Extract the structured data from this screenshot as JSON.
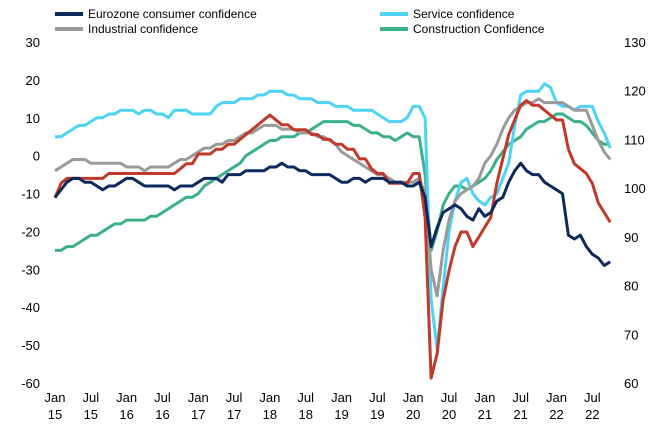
{
  "chart_data": {
    "type": "line",
    "categories": [
      "Jan 15",
      null,
      null,
      null,
      null,
      null,
      "Jul 15",
      null,
      null,
      null,
      null,
      null,
      "Jan 16",
      null,
      null,
      null,
      null,
      null,
      "Jul 16",
      null,
      null,
      null,
      null,
      null,
      "Jan 17",
      null,
      null,
      null,
      null,
      null,
      "Jul 17",
      null,
      null,
      null,
      null,
      null,
      "Jan 18",
      null,
      null,
      null,
      null,
      null,
      "Jul 18",
      null,
      null,
      null,
      null,
      null,
      "Jan 19",
      null,
      null,
      null,
      null,
      null,
      "Jul 19",
      null,
      null,
      null,
      null,
      null,
      "Jan 20",
      null,
      null,
      null,
      null,
      null,
      "Jul 20",
      null,
      null,
      null,
      null,
      null,
      "Jan 21",
      null,
      null,
      null,
      null,
      null,
      "Jul 21",
      null,
      null,
      null,
      null,
      null,
      "Jan 22",
      null,
      null,
      null,
      null,
      null,
      "Jul 22",
      null,
      null,
      null
    ],
    "series": [
      {
        "name": "Eurozone consumer confidence",
        "color": "#0d2a5c",
        "values": [
          -11,
          -9,
          -7,
          -6,
          -6,
          -7,
          -7,
          -8,
          -9,
          -8,
          -8,
          -7,
          -6,
          -6,
          -7,
          -8,
          -8,
          -8,
          -8,
          -8,
          -9,
          -8,
          -8,
          -8,
          -7,
          -6,
          -6,
          -6,
          -7,
          -5,
          -5,
          -5,
          -4,
          -4,
          -4,
          -4,
          -3,
          -3,
          -2,
          -3,
          -3,
          -4,
          -4,
          -5,
          -5,
          -5,
          -5,
          -6,
          -7,
          -7,
          -6,
          -6,
          -7,
          -6,
          -6,
          -6,
          -7,
          -7,
          -7,
          -8,
          -8,
          -7,
          -11,
          -24,
          -19,
          -15,
          -14,
          -13,
          -14,
          -16,
          -17,
          -14,
          -16,
          -15,
          -12,
          -11,
          -7,
          -4,
          -2,
          -4,
          -5,
          -5,
          -7,
          -8,
          -9,
          -10,
          -21,
          -22,
          -21,
          -24,
          -26,
          -27,
          -29,
          -28
        ]
      },
      {
        "name": "Service confidence",
        "color": "#4dd3f5",
        "values": [
          5,
          5,
          6,
          7,
          8,
          8,
          9,
          10,
          10,
          11,
          11,
          12,
          12,
          12,
          11,
          12,
          12,
          11,
          11,
          10,
          12,
          12,
          12,
          11,
          11,
          11,
          11,
          13,
          14,
          14,
          14,
          15,
          15,
          15,
          16,
          16,
          17,
          17,
          17,
          16,
          16,
          15,
          15,
          15,
          14,
          14,
          14,
          13,
          13,
          13,
          12,
          12,
          12,
          12,
          11,
          10,
          9,
          9,
          9,
          10,
          13,
          13,
          10,
          -38,
          -51,
          -35,
          -20,
          -12,
          -7,
          -6,
          -10,
          -12,
          -13,
          -11,
          -10,
          -6,
          -2,
          8,
          16,
          17,
          17,
          17,
          19,
          18,
          14,
          13,
          13,
          12,
          13,
          13,
          13,
          9,
          6,
          2
        ]
      },
      {
        "name": "Industrial confidence",
        "color": "#9a9a9a",
        "values": [
          -4,
          -3,
          -2,
          -1,
          -1,
          -1,
          -2,
          -2,
          -2,
          -2,
          -2,
          -2,
          -3,
          -3,
          -3,
          -4,
          -3,
          -3,
          -3,
          -3,
          -2,
          -1,
          -1,
          0,
          1,
          2,
          2,
          3,
          3,
          4,
          4,
          5,
          6,
          6,
          7,
          8,
          8,
          8,
          7,
          7,
          7,
          6,
          6,
          6,
          5,
          5,
          4,
          3,
          1,
          0,
          -1,
          -2,
          -3,
          -4,
          -5,
          -5,
          -6,
          -7,
          -7,
          -7,
          -7,
          -6,
          -10,
          -30,
          -37,
          -25,
          -17,
          -12,
          -10,
          -9,
          -8,
          -6,
          -2,
          0,
          3,
          7,
          10,
          12,
          13,
          14,
          14,
          15,
          14,
          14,
          14,
          14,
          13,
          12,
          12,
          12,
          8,
          4,
          1,
          -1
        ]
      },
      {
        "name": "Construction Confidence",
        "color": "#3cb08a",
        "values": [
          -25,
          -25,
          -24,
          -24,
          -23,
          -22,
          -21,
          -21,
          -20,
          -19,
          -18,
          -18,
          -17,
          -17,
          -17,
          -17,
          -16,
          -16,
          -15,
          -14,
          -13,
          -12,
          -11,
          -11,
          -10,
          -8,
          -7,
          -6,
          -5,
          -4,
          -3,
          -2,
          0,
          1,
          2,
          3,
          4,
          4,
          5,
          5,
          5,
          6,
          6,
          7,
          8,
          9,
          9,
          9,
          9,
          9,
          8,
          8,
          7,
          6,
          6,
          5,
          5,
          4,
          5,
          6,
          5,
          5,
          -5,
          -25,
          -20,
          -13,
          -10,
          -8,
          -8,
          -9,
          -8,
          -7,
          -6,
          -4,
          -1,
          1,
          3,
          4,
          5,
          7,
          8,
          9,
          9,
          10,
          11,
          11,
          10,
          9,
          9,
          8,
          6,
          4,
          3,
          3
        ]
      },
      {
        "color": "#c0392b",
        "axis": "y2",
        "values": [
          98,
          101,
          102,
          102,
          102,
          102,
          102,
          102,
          102,
          103,
          103,
          103,
          103,
          103,
          103,
          103,
          103,
          103,
          103,
          103,
          103,
          104,
          105,
          105,
          107,
          107,
          107,
          108,
          108,
          109,
          109,
          110,
          111,
          112,
          113,
          114,
          115,
          114,
          113,
          113,
          112,
          112,
          112,
          111,
          111,
          110,
          110,
          109,
          109,
          108,
          108,
          106,
          106,
          104,
          103,
          103,
          101,
          101,
          101,
          101,
          103,
          103,
          94,
          61,
          66,
          77,
          83,
          88,
          91,
          91,
          88,
          90,
          92,
          94,
          101,
          106,
          111,
          114,
          117,
          118,
          117,
          117,
          116,
          115,
          114,
          114,
          108,
          105,
          104,
          103,
          101,
          97,
          95,
          93
        ]
      }
    ],
    "ylim": [
      -60,
      30
    ],
    "yticks": [
      -60,
      -50,
      -40,
      -30,
      -20,
      -10,
      0,
      10,
      20,
      30
    ],
    "y2lim": [
      60,
      130
    ],
    "y2ticks": [
      60,
      70,
      80,
      90,
      100,
      110,
      120,
      130
    ]
  }
}
